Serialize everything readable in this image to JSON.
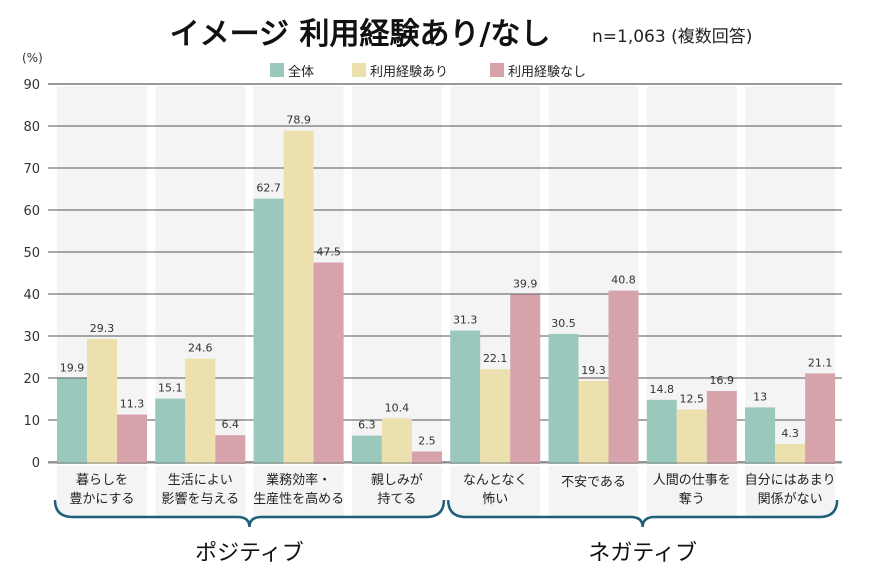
{
  "chart_data": {
    "type": "bar",
    "title": "イメージ 利用経験あり/なし",
    "subtitle": "n=1,063 (複数回答)",
    "ylabel": "(%)",
    "ylim": [
      0,
      90
    ],
    "yticks": [
      0,
      10,
      20,
      30,
      40,
      50,
      60,
      70,
      80,
      90
    ],
    "grid": true,
    "legend_position": "top-center",
    "categories": [
      [
        "暮らしを",
        "豊かにする"
      ],
      [
        "生活によい",
        "影響を与える"
      ],
      [
        "業務効率・",
        "生産性を高める"
      ],
      [
        "親しみが",
        "持てる"
      ],
      [
        "なんとなく",
        "怖い"
      ],
      [
        "不安である",
        ""
      ],
      [
        "人間の仕事を",
        "奪う"
      ],
      [
        "自分にはあまり",
        "関係がない"
      ]
    ],
    "series": [
      {
        "name": "全体",
        "color": "#9bc8bc",
        "values": [
          19.9,
          15.1,
          62.7,
          6.3,
          31.3,
          30.5,
          14.8,
          13
        ]
      },
      {
        "name": "利用経験あり",
        "color": "#ebe0ae",
        "values": [
          29.3,
          24.6,
          78.9,
          10.4,
          22.1,
          19.3,
          12.5,
          4.3
        ]
      },
      {
        "name": "利用経験なし",
        "color": "#d7a3ab",
        "values": [
          11.3,
          6.4,
          47.5,
          2.5,
          39.9,
          40.8,
          16.9,
          21.1
        ]
      }
    ],
    "groups": [
      {
        "label": "ポジティブ",
        "categories": [
          0,
          3
        ]
      },
      {
        "label": "ネガティブ",
        "categories": [
          4,
          7
        ]
      }
    ]
  }
}
